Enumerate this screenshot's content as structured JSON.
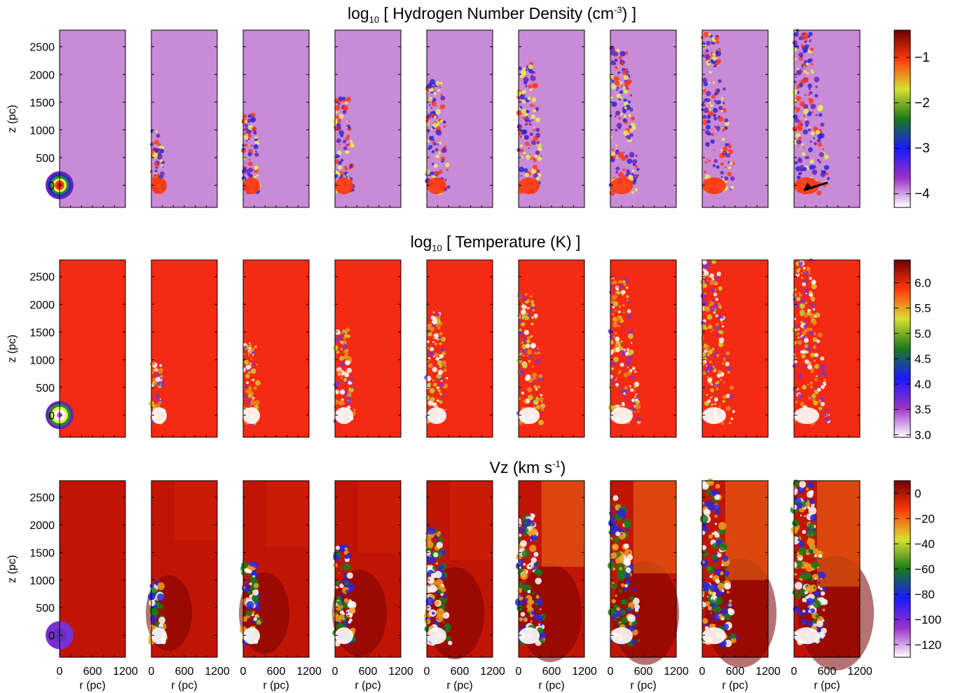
{
  "chart_data": [
    {
      "type": "heatmap",
      "title_parts": {
        "pre": "log",
        "sub": "10",
        "mid": " [ Hydrogen Number Density (cm",
        "sup": "-3",
        "post": ") ]"
      },
      "ylabel": "z (pc)",
      "xlabel": "",
      "xlim": [
        0,
        1200
      ],
      "ylim": [
        -400,
        2800
      ],
      "yticks": [
        "0",
        "500",
        "1000",
        "1500",
        "2000",
        "2500"
      ],
      "ytick_values": [
        0,
        500,
        1000,
        1500,
        2000,
        2500
      ],
      "colorbar": {
        "range": [
          -4.3,
          -0.4
        ],
        "ticks": [
          "−1",
          "−2",
          "−3",
          "−4"
        ],
        "tick_values": [
          -1,
          -2,
          -3,
          -4
        ],
        "colors": [
          "#ffffff",
          "#9b30c8",
          "#1a1aff",
          "#1a7a1a",
          "#d8e030",
          "#ff3a0a",
          "#6e0000"
        ]
      },
      "background_color": "#c98ad6",
      "feature_colors": [
        "#6a25b8",
        "#2828dd",
        "#ff3a1a",
        "#e6f05a"
      ],
      "annotation": "arrow"
    },
    {
      "type": "heatmap",
      "title_parts": {
        "pre": "log",
        "sub": "10",
        "mid": " [ Temperature (K) ]",
        "sup": "",
        "post": ""
      },
      "ylabel": "z (pc)",
      "xlabel": "",
      "xlim": [
        0,
        1200
      ],
      "ylim": [
        -400,
        2800
      ],
      "yticks": [
        "0",
        "500",
        "1000",
        "1500",
        "2000",
        "2500"
      ],
      "ytick_values": [
        0,
        500,
        1000,
        1500,
        2000,
        2500
      ],
      "colorbar": {
        "range": [
          2.95,
          6.45
        ],
        "ticks": [
          "6.0",
          "5.5",
          "5.0",
          "4.5",
          "4.0",
          "3.5",
          "3.0"
        ],
        "tick_values": [
          6.0,
          5.5,
          5.0,
          4.5,
          4.0,
          3.5,
          3.0
        ],
        "colors": [
          "#ffffff",
          "#9b30c8",
          "#1a1aff",
          "#1a7a1a",
          "#d8e030",
          "#ff3a0a",
          "#6e0000"
        ]
      },
      "background_color": "#f52a12",
      "feature_colors": [
        "#f08a1c",
        "#c8d030",
        "#ffffff",
        "#8a30c0"
      ]
    },
    {
      "type": "heatmap",
      "title_parts": {
        "pre": "V",
        "sub": "",
        "mid": "z (km s",
        "sup": "-1",
        "post": ")"
      },
      "ylabel": "z (pc)",
      "xlabel": "r (pc)",
      "xticks": [
        "0",
        "600",
        "1200"
      ],
      "xtick_values": [
        0,
        600,
        1200
      ],
      "xlim": [
        0,
        1200
      ],
      "ylim": [
        -400,
        2800
      ],
      "yticks": [
        "0",
        "500",
        "1000",
        "1500",
        "2000",
        "2500"
      ],
      "ytick_values": [
        0,
        500,
        1000,
        1500,
        2000,
        2500
      ],
      "colorbar": {
        "range": [
          -130,
          10
        ],
        "ticks": [
          "0",
          "−20",
          "−40",
          "−60",
          "−80",
          "−100",
          "−120"
        ],
        "tick_values": [
          0,
          -20,
          -40,
          -60,
          -80,
          -100,
          -120
        ],
        "colors": [
          "#ffffff",
          "#9b30c8",
          "#1a1aff",
          "#1a7a1a",
          "#d8e030",
          "#ff3a0a",
          "#6e0000"
        ]
      },
      "background_color": "#c01505",
      "feature_colors": [
        "#1a7a1a",
        "#2828dd",
        "#ffffff",
        "#f0a020"
      ]
    }
  ]
}
